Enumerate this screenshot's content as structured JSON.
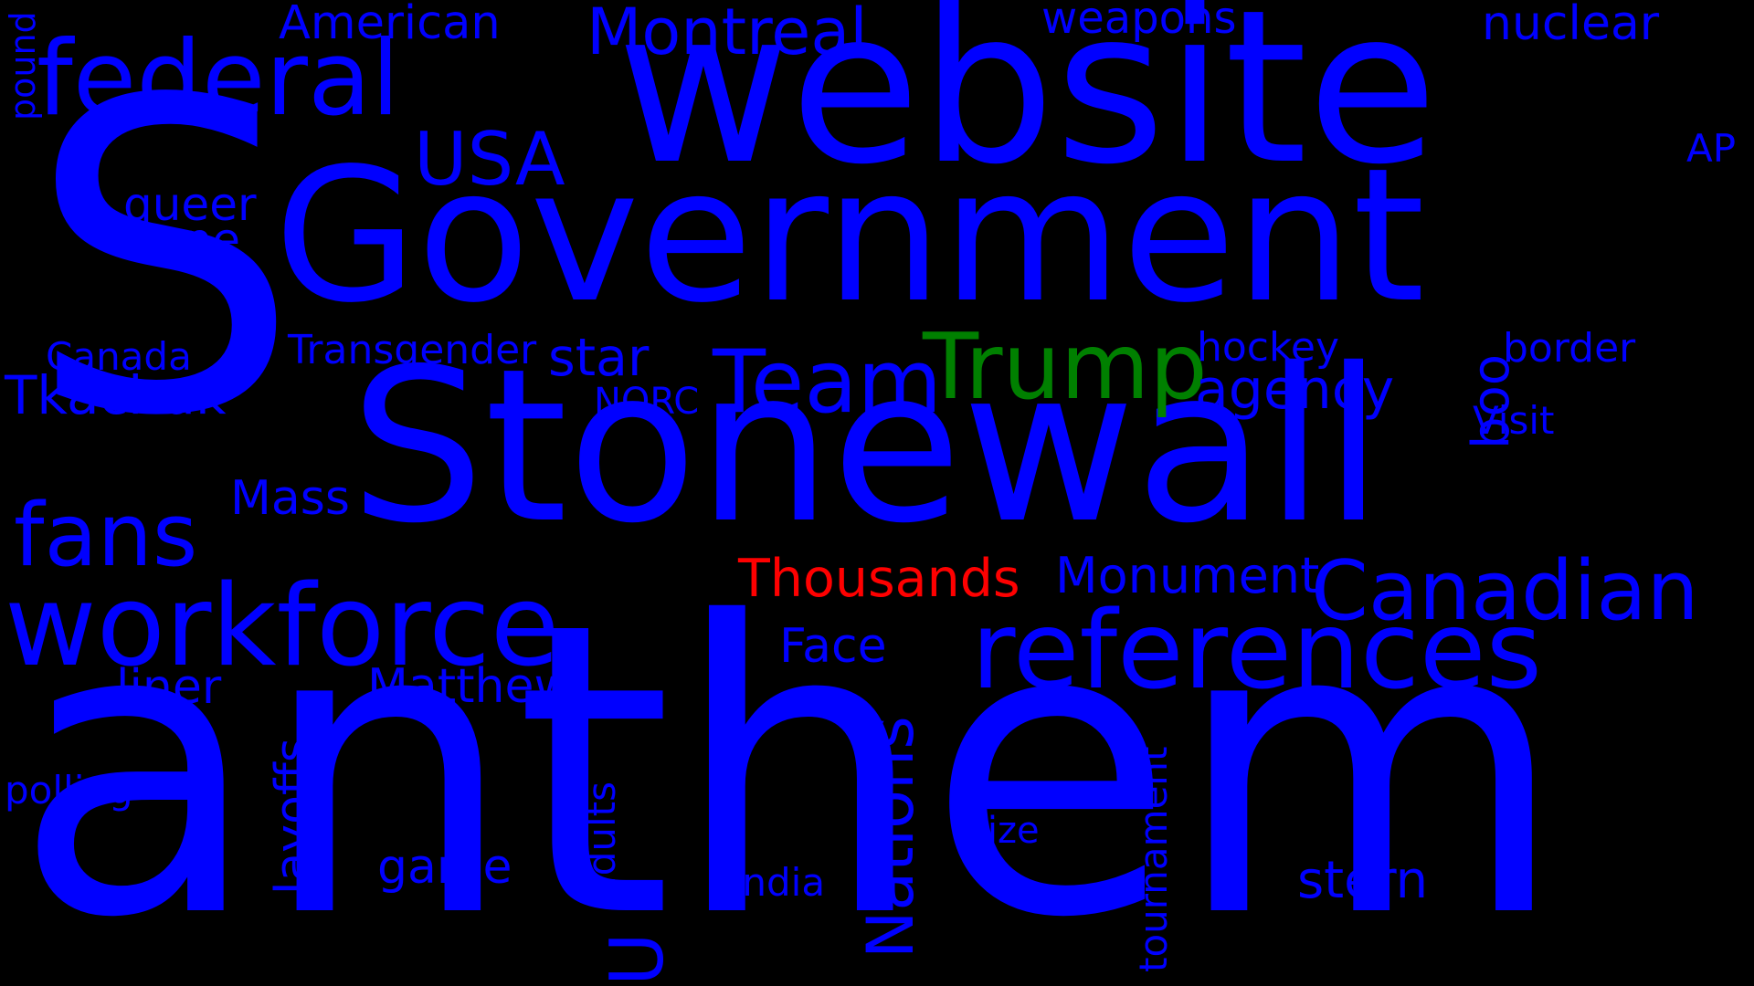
{
  "colors": {
    "background": "#000000",
    "primary": "#0000ff",
    "highlight_red": "#ff0000",
    "highlight_green": "#008000"
  },
  "words": {
    "s": "S",
    "website": "website",
    "government": "Government",
    "stonewall": "Stonewall",
    "anthem": "anthem",
    "federal": "federal",
    "american": "American",
    "montreal": "Montreal",
    "weapons": "weapons",
    "nuclear": "nuclear",
    "pound": "pound",
    "usa": "USA",
    "ap": "AP",
    "queer": "queer",
    "one": "one",
    "canada": "Canada",
    "transgender": "Transgender",
    "star": "star",
    "team": "Team",
    "trump": "Trump",
    "hockey": "hockey",
    "border": "border",
    "tkachuk": "Tkachuk",
    "norc": "NORC",
    "agency": "agency",
    "visit": "Visit",
    "boo": "boo",
    "mass": "Mass",
    "fans": "fans",
    "workforce": "workforce",
    "thousands": "Thousands",
    "monument": "Monument",
    "canadian": "Canadian",
    "references": "references",
    "face": "Face",
    "liner": "liner",
    "matthew": "Matthew",
    "u": "U",
    "nations": "Nations",
    "layoffs": "layoffs",
    "polling": "polling",
    "game": "game",
    "adults": "adults",
    "india": "India",
    "size": "size",
    "tournament": "tournament",
    "stern": "stern"
  }
}
